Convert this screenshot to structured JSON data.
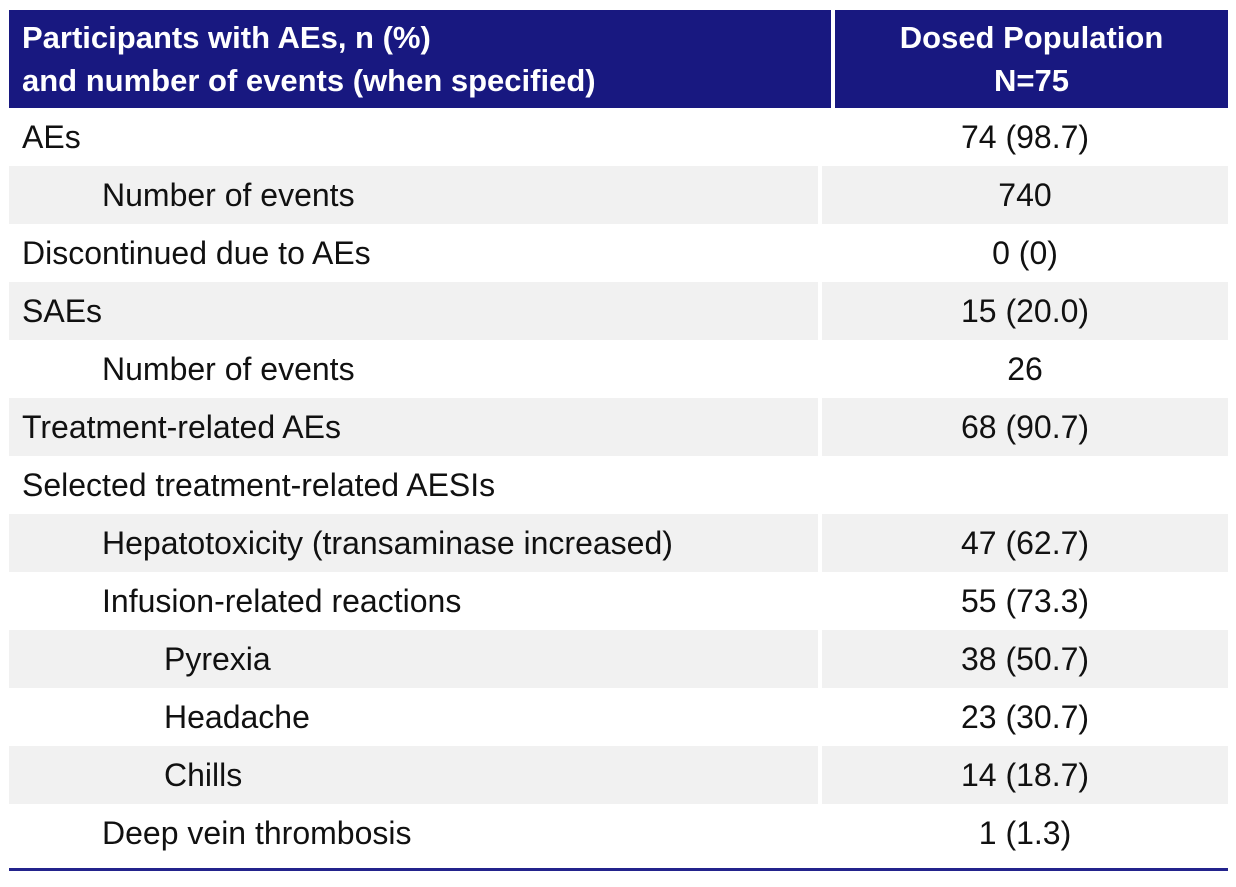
{
  "table": {
    "colors": {
      "header_bg": "#181880",
      "header_text": "#ffffff",
      "row_alt_bg": "#f1f1f1",
      "body_text": "#111111",
      "bottom_rule": "#23238c"
    },
    "header": {
      "col1_line1": "Participants with AEs, n (%)",
      "col1_line2": "and number of events (when specified)",
      "col2_line1": "Dosed Population",
      "col2_line2": "N=75"
    },
    "rows": [
      {
        "label": "AEs",
        "value": "74 (98.7)",
        "indent": 0
      },
      {
        "label": "Number of events",
        "value": "740",
        "indent": 1
      },
      {
        "label": "Discontinued due to AEs",
        "value": "0 (0)",
        "indent": 0
      },
      {
        "label": "SAEs",
        "value": "15 (20.0)",
        "indent": 0
      },
      {
        "label": "Number of events",
        "value": "26",
        "indent": 1
      },
      {
        "label": "Treatment-related AEs",
        "value": "68 (90.7)",
        "indent": 0
      },
      {
        "label": "Selected treatment-related AESIs",
        "value": "",
        "indent": 0
      },
      {
        "label": "Hepatotoxicity (transaminase increased)",
        "value": "47 (62.7)",
        "indent": 1
      },
      {
        "label": "Infusion-related reactions",
        "value": "55 (73.3)",
        "indent": 1
      },
      {
        "label": "Pyrexia",
        "value": "38 (50.7)",
        "indent": 2
      },
      {
        "label": "Headache",
        "value": "23 (30.7)",
        "indent": 2
      },
      {
        "label": "Chills",
        "value": "14 (18.7)",
        "indent": 2
      },
      {
        "label": "Deep vein thrombosis",
        "value": "1 (1.3)",
        "indent": 1
      }
    ]
  }
}
